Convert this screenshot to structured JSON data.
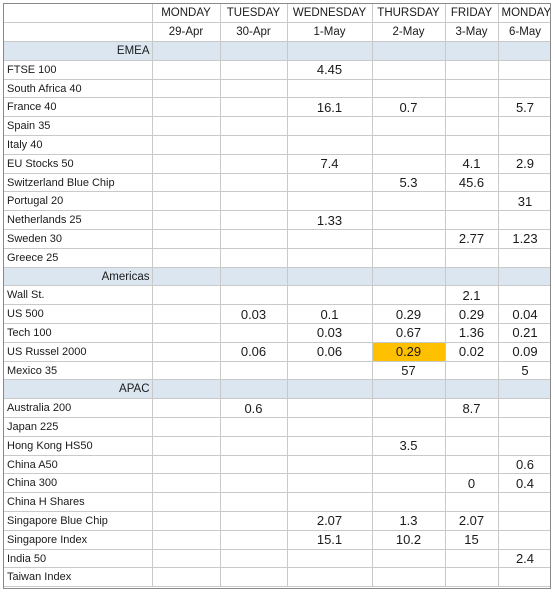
{
  "days": [
    "MONDAY",
    "TUESDAY",
    "WEDNESDAY",
    "THURSDAY",
    "FRIDAY",
    "MONDAY"
  ],
  "dates": [
    "29-Apr",
    "30-Apr",
    "1-May",
    "2-May",
    "3-May",
    "6-May"
  ],
  "colors": {
    "region_bg": "#dce6f1",
    "highlight": "#ffc000",
    "grid": "#c9c9c9"
  },
  "sections": [
    {
      "region": "EMEA",
      "rows": [
        {
          "name": "FTSE 100",
          "values": [
            "",
            "",
            "4.45",
            "",
            "",
            ""
          ]
        },
        {
          "name": "South Africa 40",
          "values": [
            "",
            "",
            "",
            "",
            "",
            ""
          ]
        },
        {
          "name": "France 40",
          "values": [
            "",
            "",
            "16.1",
            "0.7",
            "",
            "5.7"
          ]
        },
        {
          "name": "Spain 35",
          "values": [
            "",
            "",
            "",
            "",
            "",
            ""
          ]
        },
        {
          "name": "Italy 40",
          "values": [
            "",
            "",
            "",
            "",
            "",
            ""
          ]
        },
        {
          "name": "EU Stocks 50",
          "values": [
            "",
            "",
            "7.4",
            "",
            "4.1",
            "2.9"
          ]
        },
        {
          "name": "Switzerland Blue Chip",
          "values": [
            "",
            "",
            "",
            "5.3",
            "45.6",
            ""
          ]
        },
        {
          "name": "Portugal 20",
          "values": [
            "",
            "",
            "",
            "",
            "",
            "31"
          ]
        },
        {
          "name": "Netherlands 25",
          "values": [
            "",
            "",
            "1.33",
            "",
            "",
            ""
          ]
        },
        {
          "name": "Sweden 30",
          "values": [
            "",
            "",
            "",
            "",
            "2.77",
            "1.23"
          ]
        },
        {
          "name": "Greece 25",
          "values": [
            "",
            "",
            "",
            "",
            "",
            ""
          ]
        }
      ]
    },
    {
      "region": "Americas",
      "rows": [
        {
          "name": "Wall St.",
          "values": [
            "",
            "",
            "",
            "",
            "2.1",
            ""
          ]
        },
        {
          "name": "US 500",
          "values": [
            "",
            "0.03",
            "0.1",
            "0.29",
            "0.29",
            "0.04"
          ]
        },
        {
          "name": "Tech 100",
          "values": [
            "",
            "",
            "0.03",
            "0.67",
            "1.36",
            "0.21"
          ]
        },
        {
          "name": "US Russel 2000",
          "values": [
            "",
            "0.06",
            "0.06",
            "0.29",
            "0.02",
            "0.09"
          ],
          "highlight": 3
        },
        {
          "name": "Mexico 35",
          "values": [
            "",
            "",
            "",
            "57",
            "",
            "5"
          ]
        }
      ]
    },
    {
      "region": "APAC",
      "rows": [
        {
          "name": "Australia 200",
          "values": [
            "",
            "0.6",
            "",
            "",
            "8.7",
            ""
          ]
        },
        {
          "name": "Japan 225",
          "values": [
            "",
            "",
            "",
            "",
            "",
            ""
          ]
        },
        {
          "name": "Hong Kong HS50",
          "values": [
            "",
            "",
            "",
            "3.5",
            "",
            ""
          ]
        },
        {
          "name": "China A50",
          "values": [
            "",
            "",
            "",
            "",
            "",
            "0.6"
          ]
        },
        {
          "name": "China 300",
          "values": [
            "",
            "",
            "",
            "",
            "0",
            "0.4"
          ]
        },
        {
          "name": "China H Shares",
          "values": [
            "",
            "",
            "",
            "",
            "",
            ""
          ]
        },
        {
          "name": "Singapore Blue Chip",
          "values": [
            "",
            "",
            "2.07",
            "1.3",
            "2.07",
            ""
          ]
        },
        {
          "name": "Singapore Index",
          "values": [
            "",
            "",
            "15.1",
            "10.2",
            "15",
            ""
          ]
        },
        {
          "name": "India 50",
          "values": [
            "",
            "",
            "",
            "",
            "",
            "2.4"
          ]
        },
        {
          "name": "Taiwan Index",
          "values": [
            "",
            "",
            "",
            "",
            "",
            ""
          ]
        }
      ]
    }
  ]
}
